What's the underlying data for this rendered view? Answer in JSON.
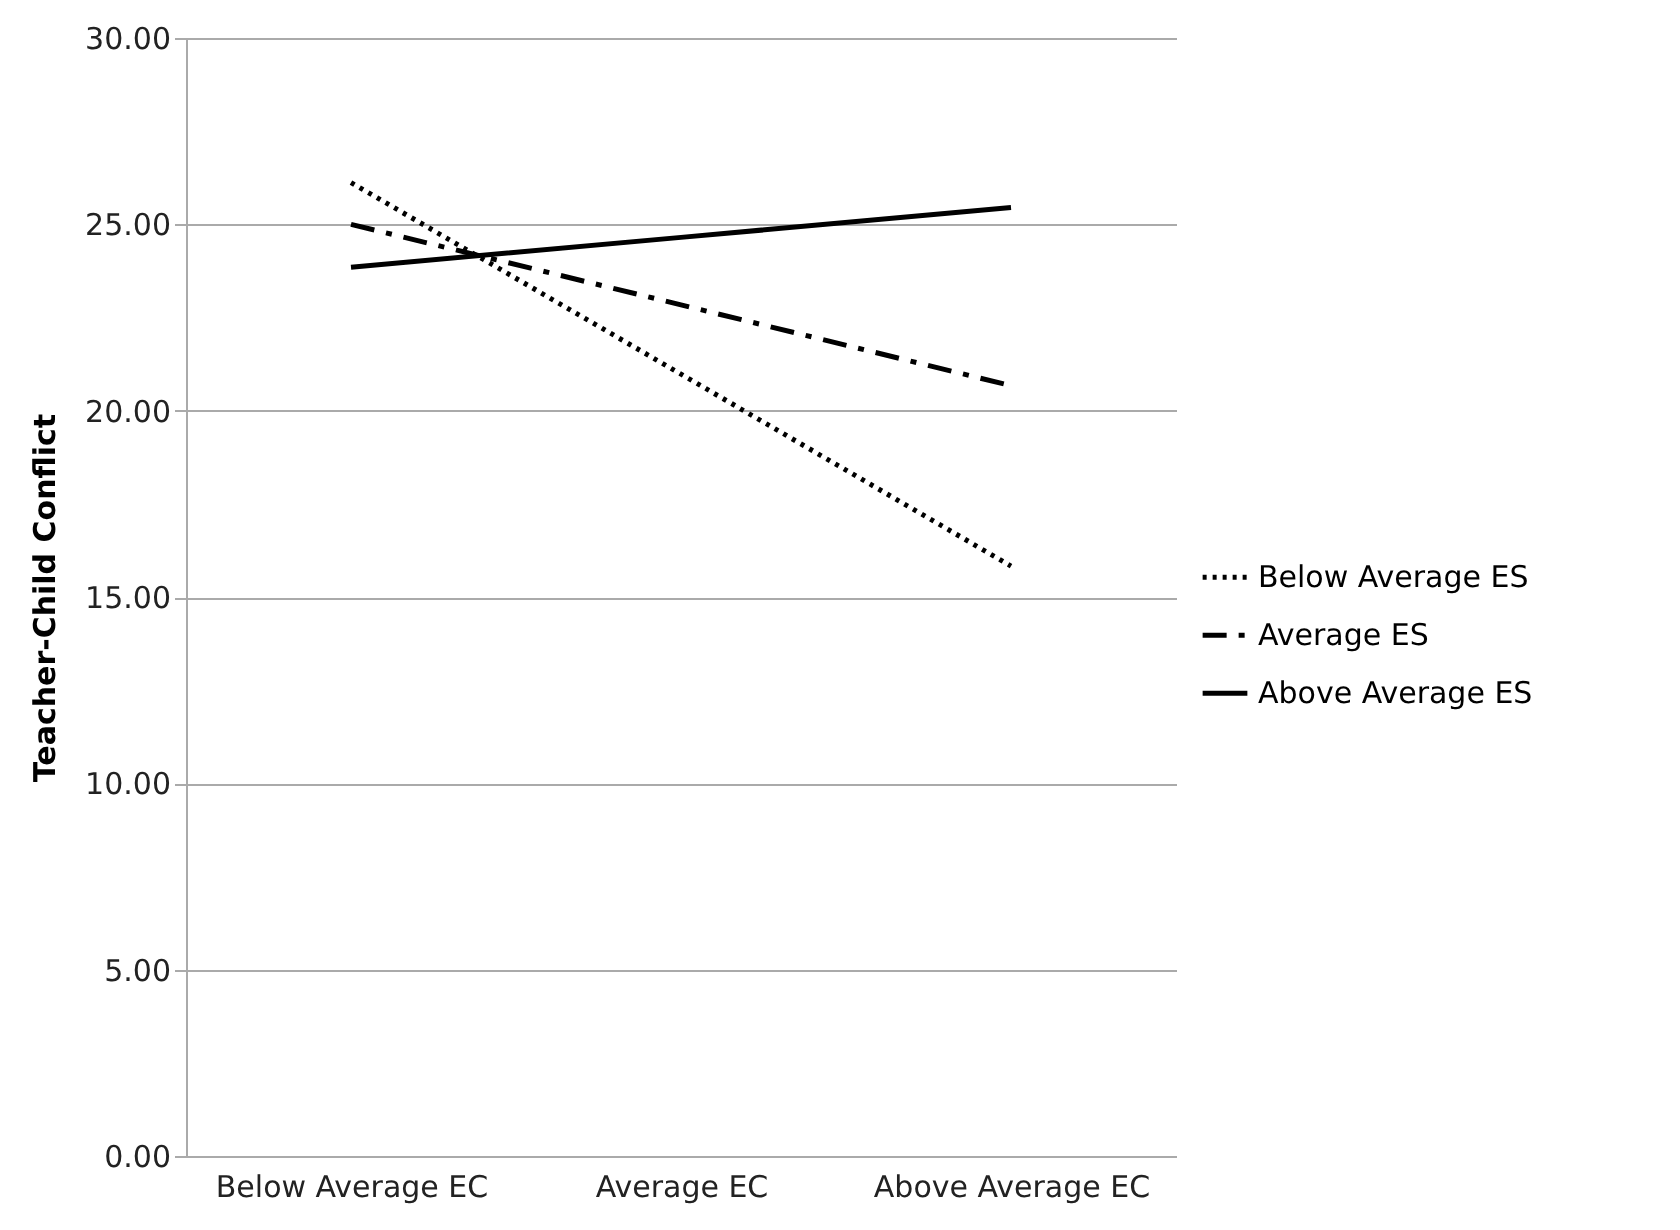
{
  "chart_data": {
    "type": "line",
    "categories": [
      "Below Average EC",
      "Average EC",
      "Above Average EC"
    ],
    "ylabel": "Teacher-Child Conflict",
    "ylim": [
      0,
      30
    ],
    "yticks": [
      {
        "value": 0,
        "label": "0.00"
      },
      {
        "value": 5,
        "label": "5.00"
      },
      {
        "value": 10,
        "label": "10.00"
      },
      {
        "value": 15,
        "label": "15.00"
      },
      {
        "value": 20,
        "label": "20.00"
      },
      {
        "value": 25,
        "label": "25.00"
      },
      {
        "value": 30,
        "label": "30.00"
      }
    ],
    "grid": "y",
    "legend": "right",
    "marker": "none",
    "series": [
      {
        "name": "Below Average ES",
        "color": "#000000",
        "line_style": "dotted",
        "values": [
          26.12,
          20.98,
          15.83
        ]
      },
      {
        "name": "Average ES",
        "color": "#000000",
        "line_style": "dashed",
        "values": [
          25.0,
          22.84,
          20.67
        ]
      },
      {
        "name": "Above Average ES",
        "color": "#000000",
        "line_style": "solid",
        "values": [
          23.85,
          24.65,
          25.45
        ]
      }
    ]
  }
}
